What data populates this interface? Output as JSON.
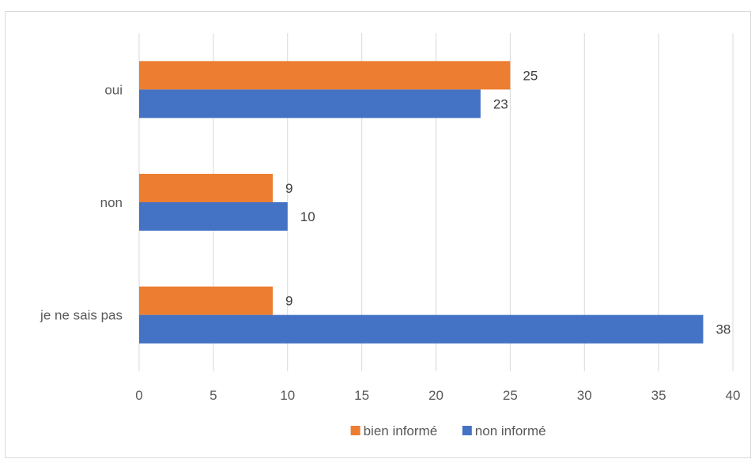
{
  "chart_data": {
    "type": "bar",
    "orientation": "horizontal",
    "categories": [
      "oui",
      "non",
      "je ne sais pas"
    ],
    "series": [
      {
        "name": "bien informé",
        "color": "#ED7D31",
        "values": [
          25,
          9,
          9
        ]
      },
      {
        "name": "non informé",
        "color": "#4472C4",
        "values": [
          23,
          10,
          38
        ]
      }
    ],
    "xlim": [
      0,
      40
    ],
    "xticks": [
      0,
      5,
      10,
      15,
      20,
      25,
      30,
      35,
      40
    ],
    "grid": true,
    "legend_position": "bottom",
    "data_labels": true
  }
}
